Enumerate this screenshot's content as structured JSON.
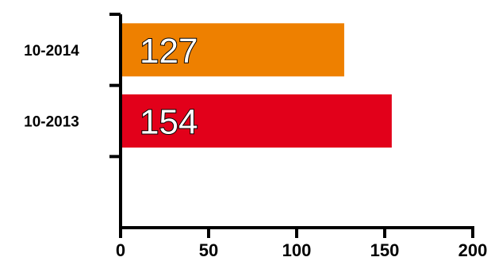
{
  "chart_data": {
    "type": "bar",
    "orientation": "horizontal",
    "categories": [
      "10-2014",
      "10-2013",
      ""
    ],
    "values": [
      127,
      154,
      null
    ],
    "colors": [
      "#EE8000",
      "#E2001A",
      null
    ],
    "data_labels": [
      "127",
      "154",
      ""
    ],
    "xlim": [
      0,
      200
    ],
    "xticks": [
      0,
      50,
      100,
      150,
      200
    ],
    "xtick_labels": [
      "0",
      "50",
      "100",
      "150",
      "200"
    ],
    "grid": false,
    "legend": "none",
    "title": "",
    "xlabel": "",
    "ylabel": ""
  }
}
